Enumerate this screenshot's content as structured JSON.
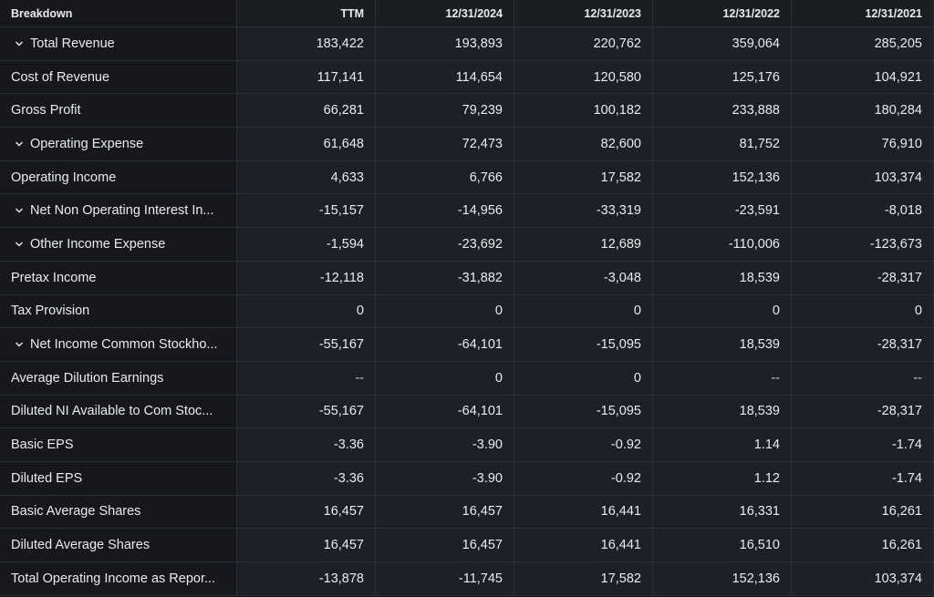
{
  "header": [
    "Breakdown",
    "TTM",
    "12/31/2024",
    "12/31/2023",
    "12/31/2022",
    "12/31/2021"
  ],
  "rows": [
    {
      "label": "Total Revenue",
      "expandable": true,
      "values": [
        "183,422",
        "193,893",
        "220,762",
        "359,064",
        "285,205"
      ]
    },
    {
      "label": "Cost of Revenue",
      "expandable": false,
      "values": [
        "117,141",
        "114,654",
        "120,580",
        "125,176",
        "104,921"
      ]
    },
    {
      "label": "Gross Profit",
      "expandable": false,
      "values": [
        "66,281",
        "79,239",
        "100,182",
        "233,888",
        "180,284"
      ]
    },
    {
      "label": "Operating Expense",
      "expandable": true,
      "values": [
        "61,648",
        "72,473",
        "82,600",
        "81,752",
        "76,910"
      ]
    },
    {
      "label": "Operating Income",
      "expandable": false,
      "values": [
        "4,633",
        "6,766",
        "17,582",
        "152,136",
        "103,374"
      ]
    },
    {
      "label": "Net Non Operating Interest In...",
      "expandable": true,
      "values": [
        "-15,157",
        "-14,956",
        "-33,319",
        "-23,591",
        "-8,018"
      ]
    },
    {
      "label": "Other Income Expense",
      "expandable": true,
      "values": [
        "-1,594",
        "-23,692",
        "12,689",
        "-110,006",
        "-123,673"
      ]
    },
    {
      "label": "Pretax Income",
      "expandable": false,
      "values": [
        "-12,118",
        "-31,882",
        "-3,048",
        "18,539",
        "-28,317"
      ]
    },
    {
      "label": "Tax Provision",
      "expandable": false,
      "values": [
        "0",
        "0",
        "0",
        "0",
        "0"
      ]
    },
    {
      "label": "Net Income Common Stockho...",
      "expandable": true,
      "values": [
        "-55,167",
        "-64,101",
        "-15,095",
        "18,539",
        "-28,317"
      ]
    },
    {
      "label": "Average Dilution Earnings",
      "expandable": false,
      "values": [
        "--",
        "0",
        "0",
        "--",
        "--"
      ]
    },
    {
      "label": "Diluted NI Available to Com Stoc...",
      "expandable": false,
      "values": [
        "-55,167",
        "-64,101",
        "-15,095",
        "18,539",
        "-28,317"
      ]
    },
    {
      "label": "Basic EPS",
      "expandable": false,
      "values": [
        "-3.36",
        "-3.90",
        "-0.92",
        "1.14",
        "-1.74"
      ]
    },
    {
      "label": "Diluted EPS",
      "expandable": false,
      "values": [
        "-3.36",
        "-3.90",
        "-0.92",
        "1.12",
        "-1.74"
      ]
    },
    {
      "label": "Basic Average Shares",
      "expandable": false,
      "values": [
        "16,457",
        "16,457",
        "16,441",
        "16,331",
        "16,261"
      ]
    },
    {
      "label": "Diluted Average Shares",
      "expandable": false,
      "values": [
        "16,457",
        "16,457",
        "16,441",
        "16,510",
        "16,261"
      ]
    },
    {
      "label": "Total Operating Income as Repor...",
      "expandable": false,
      "values": [
        "-13,878",
        "-11,745",
        "17,582",
        "152,136",
        "103,374"
      ]
    }
  ]
}
